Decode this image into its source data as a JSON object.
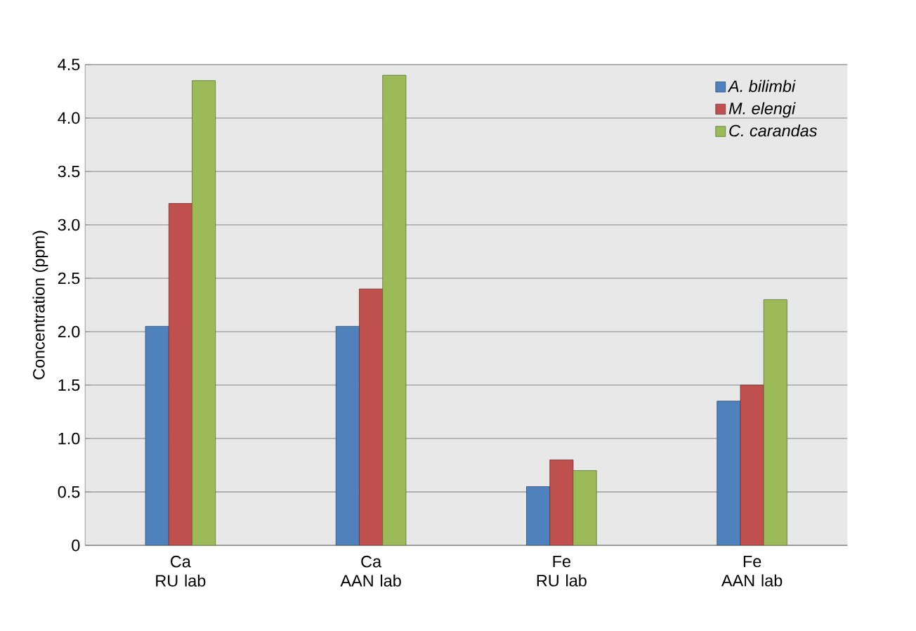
{
  "chart_data": {
    "type": "bar",
    "ylabel": "Concentration (ppm)",
    "categories": [
      "Ca RU lab",
      "Ca AAN lab",
      "Fe RU lab",
      "Fe AAN lab"
    ],
    "series": [
      {
        "name": "*A. bilimbi*",
        "color": "#4f81bd",
        "values": [
          2.05,
          2.05,
          0.55,
          1.35
        ]
      },
      {
        "name": "*M. elengi*",
        "color": "#c0504d",
        "values": [
          3.2,
          2.4,
          0.8,
          1.5
        ]
      },
      {
        "name": "*C. carandas*",
        "color": "#9bbb59",
        "values": [
          4.35,
          4.4,
          0.7,
          2.3
        ]
      }
    ],
    "ylim": [
      0,
      4.5
    ],
    "yticks": [
      0,
      0.5,
      {
        "value": 1,
        "label": "1.0"
      },
      1.5,
      {
        "value": 2,
        "label": "2.0"
      },
      2.5,
      {
        "value": 3,
        "label": "3.0"
      },
      3.5,
      {
        "value": 4,
        "label": "4.0"
      },
      4.5
    ],
    "grid": "y",
    "legend": "top right"
  }
}
